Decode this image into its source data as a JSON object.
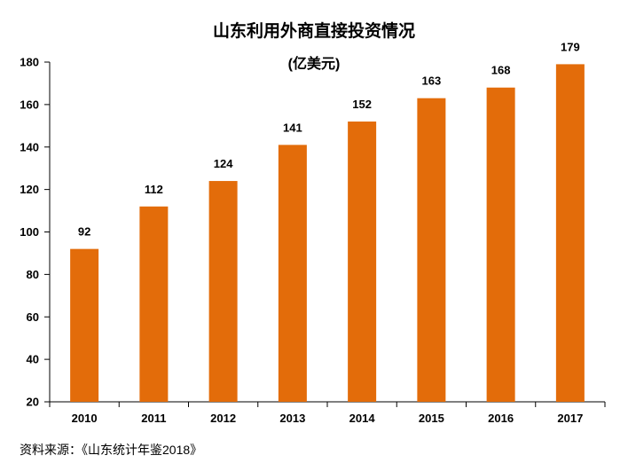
{
  "chart_data": {
    "type": "bar",
    "title": "山东利用外商直接投资情况",
    "subtitle": "(亿美元)",
    "categories": [
      "2010",
      "2011",
      "2012",
      "2013",
      "2014",
      "2015",
      "2016",
      "2017"
    ],
    "values": [
      92,
      112,
      124,
      141,
      152,
      163,
      168,
      179
    ],
    "ylim": [
      20,
      180
    ],
    "yticks": [
      20,
      40,
      60,
      80,
      100,
      120,
      140,
      160,
      180
    ],
    "xlabel": "",
    "ylabel": "",
    "grid": false,
    "bar_color": "#E36C0A",
    "source": "资料来源：《山东统计年鉴2018》"
  }
}
